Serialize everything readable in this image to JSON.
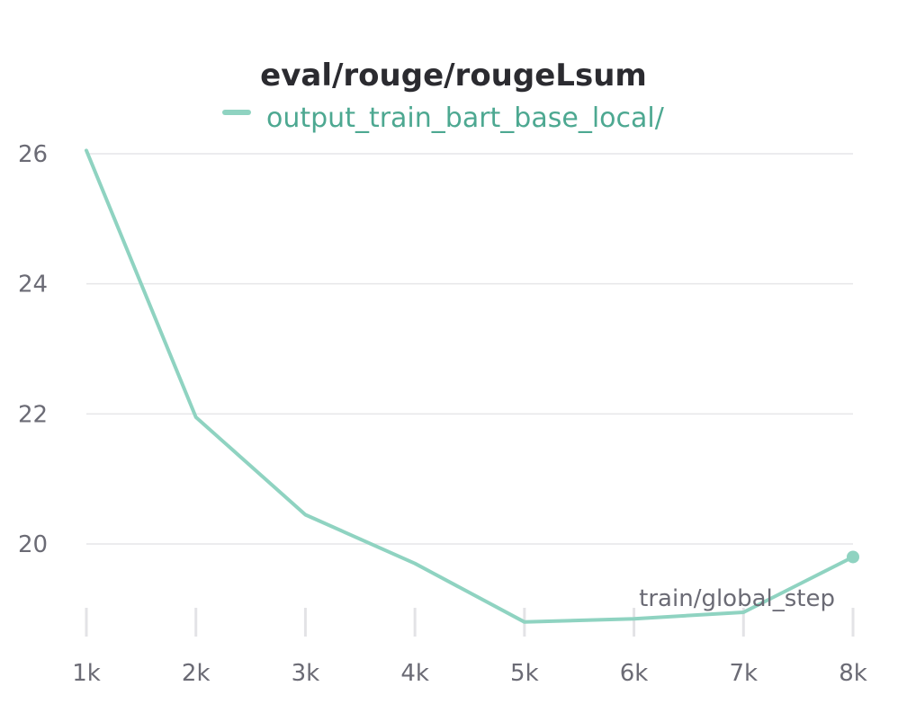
{
  "chart_data": {
    "type": "line",
    "title": "eval/rouge/rougeLsum",
    "xlabel": "train/global_step",
    "ylabel": "",
    "xlim": [
      1000,
      8000
    ],
    "ylim": [
      18.8,
      26.3
    ],
    "x_ticks": [
      1000,
      2000,
      3000,
      4000,
      5000,
      6000,
      7000,
      8000
    ],
    "x_tick_labels": [
      "1k",
      "2k",
      "3k",
      "4k",
      "5k",
      "6k",
      "7k",
      "8k"
    ],
    "y_ticks": [
      20,
      22,
      24,
      26
    ],
    "y_tick_labels": [
      "20",
      "22",
      "24",
      "26"
    ],
    "grid": true,
    "legend_position": "top-center",
    "series": [
      {
        "name": "output_train_bart_base_local/",
        "color": "#8fd3c1",
        "x": [
          1000,
          2000,
          3000,
          4000,
          5000,
          6000,
          7000,
          8000
        ],
        "values": [
          26.05,
          21.95,
          20.45,
          19.7,
          18.8,
          18.85,
          18.95,
          19.8
        ]
      }
    ]
  }
}
